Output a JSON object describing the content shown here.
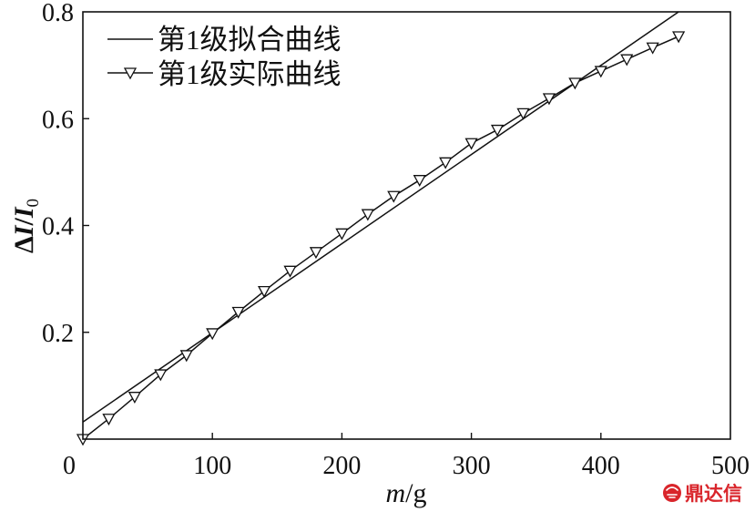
{
  "chart_data": {
    "type": "line",
    "title": "",
    "xlabel": "m/g",
    "ylabel": "ΔI/I0",
    "xlim": [
      0,
      500
    ],
    "ylim": [
      0,
      0.8
    ],
    "xticks": [
      "0",
      "100",
      "200",
      "300",
      "400",
      "500"
    ],
    "yticks": [
      "0.2",
      "0.4",
      "0.6",
      "0.8"
    ],
    "grid": false,
    "legend_position": "top-left",
    "series": [
      {
        "name": "第1级拟合曲线",
        "style": "line",
        "color": "#111111",
        "x": [
          0,
          460
        ],
        "y": [
          0.032,
          0.8
        ]
      },
      {
        "name": "第1级实际曲线",
        "style": "line-marker",
        "marker": "triangle-down",
        "color": "#111111",
        "x": [
          0,
          20,
          40,
          60,
          80,
          100,
          120,
          140,
          160,
          180,
          200,
          220,
          240,
          260,
          280,
          300,
          320,
          340,
          360,
          380,
          400,
          420,
          440,
          460
        ],
        "y": [
          0.0,
          0.038,
          0.079,
          0.121,
          0.157,
          0.198,
          0.238,
          0.277,
          0.315,
          0.35,
          0.385,
          0.421,
          0.455,
          0.485,
          0.518,
          0.554,
          0.579,
          0.61,
          0.638,
          0.667,
          0.689,
          0.711,
          0.733,
          0.754
        ]
      }
    ]
  },
  "watermark": {
    "text": "鼎达信",
    "icon": "dingdaxin-logo-icon",
    "color": "#d9252b"
  }
}
